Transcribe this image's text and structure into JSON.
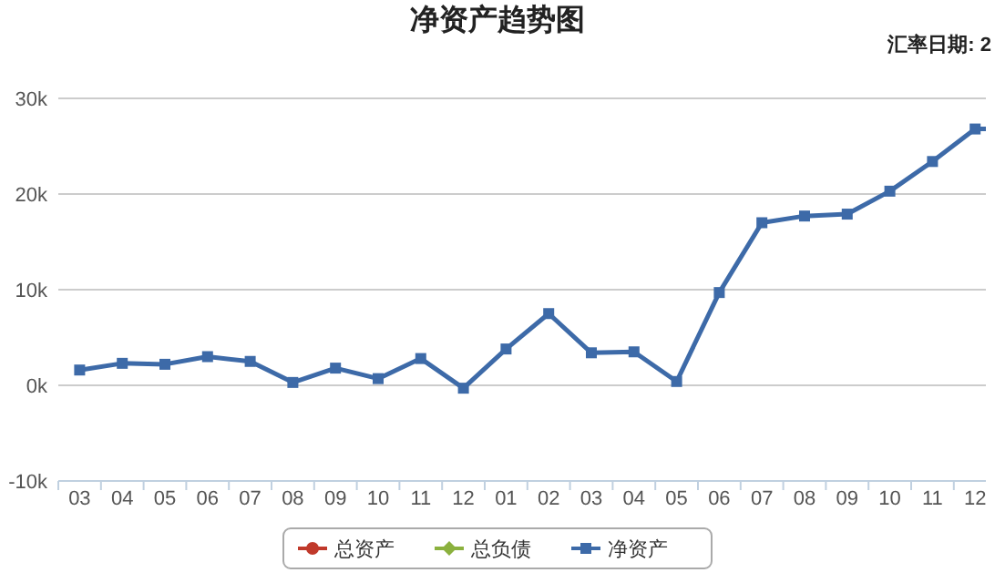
{
  "chart_data": {
    "type": "line",
    "title": "净资产趋势图",
    "annotations": [
      "汇率日期: 2"
    ],
    "categories": [
      "03",
      "04",
      "05",
      "06",
      "07",
      "08",
      "09",
      "10",
      "11",
      "12",
      "01",
      "02",
      "03",
      "04",
      "05",
      "06",
      "07",
      "08",
      "09",
      "10",
      "11",
      "12",
      null
    ],
    "series": [
      {
        "name": "总资产",
        "color": "#c0392b",
        "marker": "circle",
        "values": [
          null,
          null,
          null,
          null,
          null,
          null,
          null,
          null,
          null,
          null,
          null,
          null,
          null,
          null,
          null,
          null,
          null,
          null,
          null,
          null,
          null,
          null,
          null
        ]
      },
      {
        "name": "总负债",
        "color": "#8bb13e",
        "marker": "diamond",
        "values": [
          null,
          null,
          null,
          null,
          null,
          null,
          null,
          null,
          null,
          null,
          null,
          null,
          null,
          null,
          null,
          null,
          null,
          null,
          null,
          null,
          null,
          null,
          null
        ]
      },
      {
        "name": "净资产",
        "color": "#3d6aa8",
        "marker": "square",
        "values": [
          1600,
          2300,
          2200,
          3000,
          2500,
          300,
          1800,
          700,
          2800,
          -300,
          3800,
          7500,
          3400,
          3500,
          400,
          9700,
          17000,
          17700,
          17900,
          20300,
          23400,
          26800,
          26800
        ]
      }
    ],
    "ylim": [
      -10000,
      30000
    ],
    "yticks": [
      {
        "value": -10000,
        "label": "-10k"
      },
      {
        "value": 0,
        "label": "0k"
      },
      {
        "value": 10000,
        "label": "10k"
      },
      {
        "value": 20000,
        "label": "20k"
      },
      {
        "value": 30000,
        "label": "30k"
      }
    ],
    "grid": "y",
    "legend": "bottom",
    "line_style": "solid"
  }
}
